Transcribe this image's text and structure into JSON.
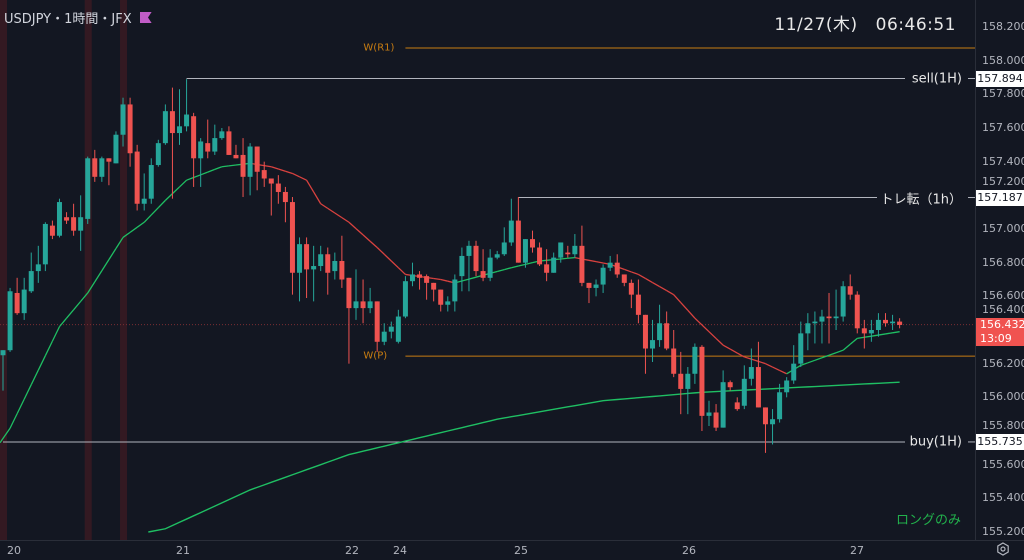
{
  "header": {
    "symbol_title": "USDJPY・1時間・JFX",
    "date": "11/27(木)",
    "time": "06:46:51"
  },
  "colors": {
    "background": "#131722",
    "up": "#26a69a",
    "down": "#ef5350",
    "ma_up": "#1fbf63",
    "ma_down": "#d9423f",
    "pivot": "#c77c12",
    "level": "#b2b5be",
    "band": "#3a1a22"
  },
  "price_axis": {
    "ticks": [
      "158.200",
      "158.000",
      "157.800",
      "157.600",
      "157.400",
      "157.200",
      "157.000",
      "156.800",
      "156.600",
      "156.400",
      "156.200",
      "156.000",
      "155.800",
      "155.600",
      "155.400",
      "155.200"
    ],
    "current_price": "156.432",
    "countdown": "13:09"
  },
  "time_axis": {
    "labels": [
      "20",
      "21",
      "22",
      "24",
      "25",
      "26",
      "27"
    ]
  },
  "levels": [
    {
      "id": "wr1",
      "label": "W(R1)",
      "price": 158.075,
      "kind": "pivot",
      "start_index": 57
    },
    {
      "id": "sell",
      "label": "sell(1H)",
      "price": 157.894,
      "kind": "line",
      "start_index": 26,
      "price_label": "157.894"
    },
    {
      "id": "trend",
      "label": "トレ転（1h）",
      "price": 157.187,
      "kind": "line",
      "start_index": 73,
      "price_label": "157.187"
    },
    {
      "id": "wp",
      "label": "W(P)",
      "price": 156.245,
      "kind": "pivot",
      "start_index": 57
    },
    {
      "id": "buy",
      "label": "buy(1H)",
      "price": 155.735,
      "kind": "line",
      "start_index": 0,
      "price_label": "155.735"
    }
  ],
  "note": "ロングのみ",
  "chart_data": {
    "type": "candlestick",
    "title": "USDJPY 1H",
    "ylim": [
      155.2,
      158.2
    ],
    "ohlc_order": [
      "open",
      "high",
      "low",
      "close"
    ],
    "candles": [
      [
        156.25,
        156.28,
        156.04,
        156.28
      ],
      [
        156.28,
        156.65,
        156.27,
        156.63
      ],
      [
        156.62,
        156.71,
        156.49,
        156.5
      ],
      [
        156.5,
        156.71,
        156.46,
        156.64
      ],
      [
        156.63,
        156.86,
        156.62,
        156.75
      ],
      [
        156.75,
        156.9,
        156.68,
        156.79
      ],
      [
        156.79,
        157.04,
        156.75,
        157.03
      ],
      [
        157.02,
        157.05,
        156.94,
        156.96
      ],
      [
        156.96,
        157.18,
        156.95,
        157.16
      ],
      [
        157.07,
        157.1,
        157.03,
        157.05
      ],
      [
        157.07,
        157.15,
        156.96,
        156.99
      ],
      [
        156.99,
        157.2,
        156.87,
        157.07
      ],
      [
        157.06,
        157.43,
        157.03,
        157.42
      ],
      [
        157.42,
        157.47,
        157.28,
        157.31
      ],
      [
        157.31,
        157.43,
        157.28,
        157.42
      ],
      [
        157.42,
        157.42,
        157.26,
        157.4
      ],
      [
        157.39,
        157.58,
        157.39,
        157.56
      ],
      [
        157.56,
        157.78,
        157.49,
        157.74
      ],
      [
        157.74,
        157.78,
        157.37,
        157.45
      ],
      [
        157.46,
        157.5,
        157.11,
        157.15
      ],
      [
        157.15,
        157.33,
        157.11,
        157.18
      ],
      [
        157.18,
        157.42,
        157.15,
        157.38
      ],
      [
        157.38,
        157.53,
        157.37,
        157.51
      ],
      [
        157.51,
        157.74,
        157.5,
        157.7
      ],
      [
        157.7,
        157.84,
        157.18,
        157.57
      ],
      [
        157.57,
        157.83,
        157.5,
        157.61
      ],
      [
        157.61,
        157.89,
        157.58,
        157.68
      ],
      [
        157.67,
        157.69,
        157.25,
        157.42
      ],
      [
        157.42,
        157.54,
        157.25,
        157.52
      ],
      [
        157.51,
        157.65,
        157.42,
        157.46
      ],
      [
        157.46,
        157.62,
        157.44,
        157.54
      ],
      [
        157.54,
        157.6,
        157.53,
        157.58
      ],
      [
        157.58,
        157.61,
        157.44,
        157.44
      ],
      [
        157.44,
        157.5,
        157.42,
        157.42
      ],
      [
        157.44,
        157.54,
        157.19,
        157.31
      ],
      [
        157.31,
        157.51,
        157.2,
        157.49
      ],
      [
        157.49,
        157.49,
        157.23,
        157.34
      ],
      [
        157.35,
        157.4,
        157.25,
        157.3
      ],
      [
        157.3,
        157.3,
        157.08,
        157.27
      ],
      [
        157.27,
        157.32,
        157.15,
        157.22
      ],
      [
        157.22,
        157.25,
        157.04,
        157.16
      ],
      [
        157.16,
        157.19,
        156.61,
        156.74
      ],
      [
        156.74,
        156.95,
        156.57,
        156.91
      ],
      [
        156.91,
        156.95,
        156.59,
        156.76
      ],
      [
        156.76,
        156.9,
        156.57,
        156.78
      ],
      [
        156.78,
        156.9,
        156.75,
        156.85
      ],
      [
        156.85,
        156.89,
        156.61,
        156.74
      ],
      [
        156.75,
        156.86,
        156.7,
        156.81
      ],
      [
        156.81,
        156.96,
        156.65,
        156.7
      ],
      [
        156.71,
        156.71,
        156.2,
        156.53
      ],
      [
        156.53,
        156.76,
        156.46,
        156.57
      ],
      [
        156.57,
        156.7,
        156.44,
        156.53
      ],
      [
        156.53,
        156.65,
        156.5,
        156.57
      ],
      [
        156.57,
        156.57,
        156.27,
        156.33
      ],
      [
        156.33,
        156.44,
        156.31,
        156.39
      ],
      [
        156.39,
        156.45,
        156.35,
        156.42
      ],
      [
        156.33,
        156.52,
        156.32,
        156.48
      ],
      [
        156.48,
        156.72,
        156.47,
        156.69
      ],
      [
        156.69,
        156.8,
        156.66,
        156.73
      ],
      [
        156.73,
        156.75,
        156.64,
        156.71
      ],
      [
        156.72,
        156.73,
        156.58,
        156.68
      ],
      [
        156.68,
        156.68,
        156.57,
        156.64
      ],
      [
        156.64,
        156.64,
        156.51,
        156.55
      ],
      [
        156.55,
        156.6,
        156.51,
        156.57
      ],
      [
        156.57,
        156.73,
        156.51,
        156.7
      ],
      [
        156.72,
        156.89,
        156.63,
        156.84
      ],
      [
        156.84,
        156.93,
        156.63,
        156.9
      ],
      [
        156.9,
        156.93,
        156.72,
        156.75
      ],
      [
        156.75,
        156.88,
        156.69,
        156.71
      ],
      [
        156.71,
        156.88,
        156.69,
        156.83
      ],
      [
        156.83,
        156.87,
        156.82,
        156.85
      ],
      [
        156.85,
        157.01,
        156.84,
        156.92
      ],
      [
        156.92,
        157.18,
        156.9,
        157.05
      ],
      [
        157.05,
        157.19,
        156.8,
        156.8
      ],
      [
        156.8,
        156.94,
        156.77,
        156.94
      ],
      [
        156.94,
        156.99,
        156.86,
        156.89
      ],
      [
        156.89,
        156.92,
        156.78,
        156.79
      ],
      [
        156.79,
        156.88,
        156.69,
        156.74
      ],
      [
        156.74,
        156.86,
        156.74,
        156.83
      ],
      [
        156.83,
        156.92,
        156.8,
        156.92
      ],
      [
        156.86,
        156.9,
        156.83,
        156.85
      ],
      [
        156.85,
        156.97,
        156.83,
        156.9
      ],
      [
        156.9,
        157.02,
        156.66,
        156.68
      ],
      [
        156.68,
        156.68,
        156.56,
        156.65
      ],
      [
        156.65,
        156.7,
        156.6,
        156.67
      ],
      [
        156.67,
        156.79,
        156.62,
        156.77
      ],
      [
        156.77,
        156.84,
        156.75,
        156.8
      ],
      [
        156.8,
        156.85,
        156.71,
        156.73
      ],
      [
        156.73,
        156.73,
        156.66,
        156.68
      ],
      [
        156.68,
        156.7,
        156.53,
        156.61
      ],
      [
        156.61,
        156.7,
        156.44,
        156.49
      ],
      [
        156.49,
        156.49,
        156.14,
        156.29
      ],
      [
        156.29,
        156.46,
        156.21,
        156.34
      ],
      [
        156.34,
        156.55,
        156.3,
        156.44
      ],
      [
        156.44,
        156.51,
        156.28,
        156.29
      ],
      [
        156.29,
        156.4,
        156.12,
        156.14
      ],
      [
        156.14,
        156.27,
        155.9,
        156.05
      ],
      [
        156.05,
        156.18,
        155.9,
        156.14
      ],
      [
        156.14,
        156.32,
        156.08,
        156.3
      ],
      [
        156.3,
        156.31,
        155.8,
        155.89
      ],
      [
        155.89,
        155.98,
        155.83,
        155.91
      ],
      [
        155.91,
        155.96,
        155.8,
        155.82
      ],
      [
        155.82,
        156.16,
        155.82,
        156.09
      ],
      [
        156.09,
        156.1,
        156.04,
        156.06
      ],
      [
        155.97,
        156.0,
        155.92,
        155.93
      ],
      [
        155.95,
        156.19,
        155.93,
        156.11
      ],
      [
        156.11,
        156.29,
        156.07,
        156.18
      ],
      [
        156.18,
        156.33,
        155.94,
        155.94
      ],
      [
        155.94,
        155.94,
        155.67,
        155.84
      ],
      [
        155.84,
        155.93,
        155.72,
        155.87
      ],
      [
        155.87,
        156.08,
        155.85,
        156.03
      ],
      [
        156.03,
        156.12,
        156.0,
        156.1
      ],
      [
        156.1,
        156.31,
        156.08,
        156.2
      ],
      [
        156.2,
        156.45,
        156.18,
        156.38
      ],
      [
        156.38,
        156.5,
        156.28,
        156.44
      ],
      [
        156.44,
        156.51,
        156.32,
        156.45
      ],
      [
        156.45,
        156.52,
        156.32,
        156.48
      ],
      [
        156.48,
        156.62,
        156.32,
        156.47
      ],
      [
        156.47,
        156.64,
        156.4,
        156.48
      ],
      [
        156.48,
        156.69,
        156.45,
        156.66
      ],
      [
        156.66,
        156.73,
        156.58,
        156.61
      ],
      [
        156.61,
        156.63,
        156.38,
        156.41
      ],
      [
        156.41,
        156.46,
        156.29,
        156.38
      ],
      [
        156.38,
        156.46,
        156.33,
        156.4
      ],
      [
        156.4,
        156.5,
        156.36,
        156.46
      ],
      [
        156.46,
        156.5,
        156.42,
        156.44
      ],
      [
        156.44,
        156.49,
        156.4,
        156.45
      ],
      [
        156.45,
        156.47,
        156.41,
        156.43
      ]
    ],
    "ma_short": [
      [
        0,
        155.73
      ],
      [
        8,
        156.42
      ],
      [
        12,
        156.62
      ],
      [
        17,
        156.95
      ],
      [
        20,
        157.04
      ],
      [
        23,
        157.17
      ],
      [
        26,
        157.29
      ],
      [
        31,
        157.37
      ],
      [
        35,
        157.39
      ],
      [
        38,
        157.37
      ],
      [
        41,
        157.33
      ],
      [
        43,
        157.29
      ],
      [
        45,
        157.15
      ],
      [
        49,
        157.04
      ],
      [
        53,
        156.89
      ],
      [
        57,
        156.73
      ],
      [
        62,
        156.7
      ],
      [
        64,
        156.68
      ],
      [
        72,
        156.77
      ],
      [
        76,
        156.81
      ],
      [
        81,
        156.83
      ],
      [
        86,
        156.79
      ],
      [
        90,
        156.73
      ],
      [
        95,
        156.61
      ],
      [
        98,
        156.47
      ],
      [
        102,
        156.31
      ],
      [
        105,
        156.24
      ],
      [
        108,
        156.2
      ],
      [
        111,
        156.14
      ],
      [
        113,
        156.19
      ],
      [
        119,
        156.28
      ],
      [
        121,
        156.35
      ],
      [
        127,
        156.39
      ]
    ],
    "ma_long": [
      [
        22,
        155.2
      ],
      [
        35,
        155.45
      ],
      [
        49,
        155.66
      ],
      [
        56,
        155.73
      ],
      [
        70,
        155.87
      ],
      [
        85,
        155.98
      ],
      [
        99,
        156.03
      ],
      [
        127,
        156.09
      ]
    ],
    "session_bands": [
      0,
      12,
      17
    ]
  }
}
